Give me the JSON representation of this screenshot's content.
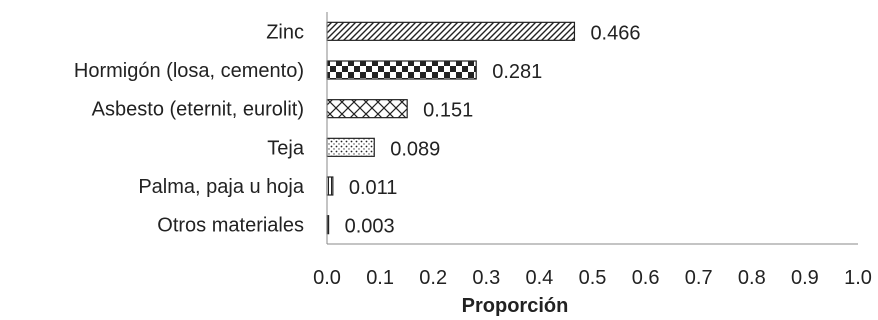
{
  "chart_data": {
    "type": "bar",
    "orientation": "horizontal",
    "title": "",
    "xlabel": "Proporción",
    "ylabel": "",
    "xlim": [
      0,
      1
    ],
    "ticks": [
      "0.0",
      "0.1",
      "0.2",
      "0.3",
      "0.4",
      "0.5",
      "0.6",
      "0.7",
      "0.8",
      "0.9",
      "1.0"
    ],
    "grid": false,
    "categories": [
      "Zinc",
      "Hormigón  (losa, cemento)",
      "Asbesto (eternit, eurolit)",
      "Teja",
      "Palma, paja u hoja",
      "Otros materiales"
    ],
    "values": [
      0.466,
      0.281,
      0.151,
      0.089,
      0.011,
      0.003
    ],
    "value_labels": [
      "0.466",
      "0.281",
      "0.151",
      "0.089",
      "0.011",
      "0.003"
    ],
    "patterns": [
      "diagonal-hatch",
      "checker",
      "crosshatch",
      "dots",
      "vertical-lines",
      "solid"
    ]
  }
}
